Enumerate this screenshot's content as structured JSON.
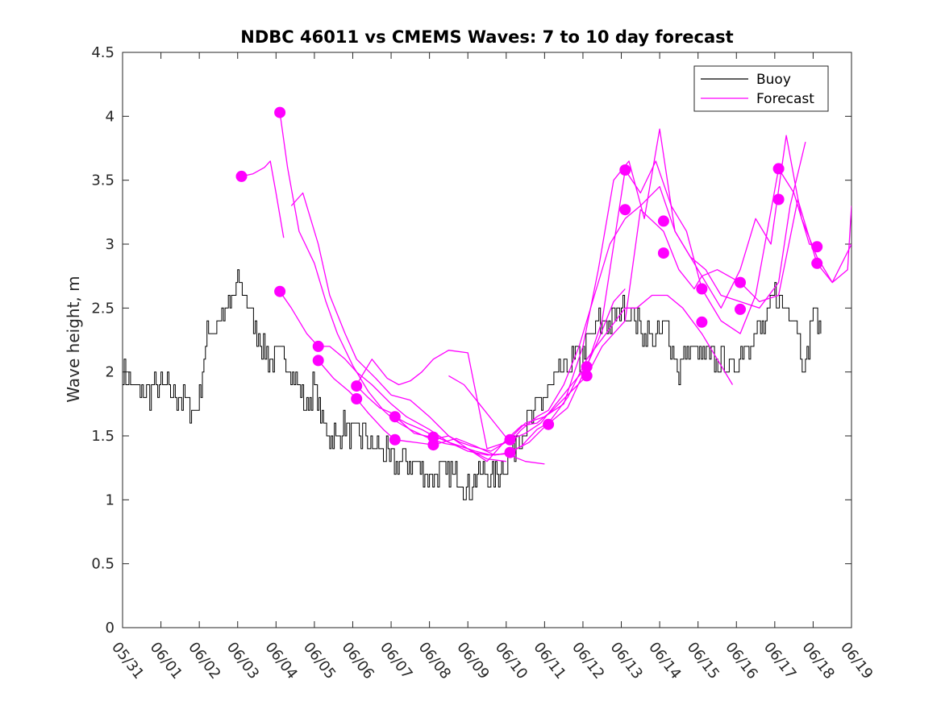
{
  "chart_data": {
    "type": "line",
    "title": "NDBC 46011 vs CMEMS Waves: 7 to 10 day forecast",
    "xlabel": "",
    "ylabel": "Wave height, m",
    "x_tick_labels": [
      "05/31",
      "06/01",
      "06/02",
      "06/03",
      "06/04",
      "06/05",
      "06/06",
      "06/07",
      "06/08",
      "06/09",
      "06/10",
      "06/11",
      "06/12",
      "06/13",
      "06/14",
      "06/15",
      "06/16",
      "06/17",
      "06/18",
      "06/19"
    ],
    "xlim": [
      "05/31",
      "06/19"
    ],
    "y_tick_labels": [
      "0",
      "0.5",
      "1",
      "1.5",
      "2",
      "2.5",
      "3",
      "3.5",
      "4",
      "4.5"
    ],
    "ylim": [
      0,
      4.5
    ],
    "legend": {
      "position": "top-right",
      "entries": [
        "Buoy",
        "Forecast"
      ]
    },
    "colors": {
      "buoy": "#000000",
      "forecast": "#ff00ff"
    },
    "x_unit": "days after 05/31 00:00",
    "buoy": {
      "name": "Buoy",
      "x": [
        0,
        0.5,
        1,
        1.5,
        1.8,
        2.0,
        2.2,
        2.5,
        2.8,
        3.0,
        3.2,
        3.5,
        3.8,
        4.0,
        4.3,
        4.6,
        4.8,
        5.0,
        5.2,
        5.4,
        5.6,
        5.8,
        6.0,
        6.3,
        6.6,
        6.8,
        7.0,
        7.3,
        7.6,
        8.0,
        8.3,
        8.6,
        8.8,
        9.0,
        9.2,
        9.4,
        9.6,
        9.8,
        10.0,
        10.3,
        10.5,
        10.8,
        11.0,
        11.2,
        11.5,
        11.8,
        12.0,
        12.2,
        12.5,
        12.8,
        13.0,
        13.3,
        13.6,
        13.9,
        14.2,
        14.5,
        14.8,
        15.0,
        15.3,
        15.6,
        15.9,
        16.2,
        16.5,
        16.8,
        17.0,
        17.2,
        17.5,
        17.8,
        18.0,
        18.2
      ],
      "values": [
        2.0,
        1.8,
        1.9,
        1.8,
        1.7,
        1.8,
        2.3,
        2.4,
        2.5,
        2.7,
        2.6,
        2.3,
        2.1,
        2.1,
        2.1,
        1.9,
        1.7,
        1.9,
        1.6,
        1.5,
        1.5,
        1.6,
        1.5,
        1.5,
        1.4,
        1.4,
        1.3,
        1.3,
        1.3,
        1.2,
        1.2,
        1.2,
        1.15,
        1.1,
        1.15,
        1.2,
        1.15,
        1.2,
        1.3,
        1.5,
        1.6,
        1.7,
        1.8,
        1.9,
        2.0,
        2.1,
        2.1,
        2.3,
        2.4,
        2.4,
        2.5,
        2.45,
        2.3,
        2.25,
        2.35,
        2.0,
        2.2,
        2.15,
        2.1,
        2.1,
        2.0,
        2.2,
        2.3,
        2.4,
        2.6,
        2.5,
        2.45,
        2.0,
        2.5,
        2.3
      ]
    },
    "forecasts": [
      {
        "name": "Forecast",
        "x": [
          3.1,
          3.4,
          3.7,
          3.85,
          4.0,
          4.2
        ],
        "values": [
          3.53,
          3.55,
          3.6,
          3.65,
          3.4,
          3.05
        ]
      },
      {
        "name": "Forecast",
        "x": [
          4.1,
          4.3,
          4.6,
          5.0,
          5.3,
          5.6,
          6.0,
          6.4,
          6.8,
          7.1,
          7.5,
          8.0,
          8.4,
          8.8,
          9.2,
          9.6,
          10.0,
          10.4,
          10.8,
          11.2,
          11.6,
          12.0,
          12.4,
          12.8,
          13.1
        ],
        "values": [
          4.03,
          3.6,
          3.1,
          2.85,
          2.55,
          2.3,
          2.05,
          1.85,
          1.7,
          1.62,
          1.55,
          1.48,
          1.44,
          1.42,
          1.38,
          1.35,
          1.36,
          1.42,
          1.55,
          1.62,
          1.72,
          1.98,
          2.25,
          2.55,
          2.65
        ]
      },
      {
        "name": "Forecast",
        "x": [
          4.1,
          4.4,
          4.8,
          5.1,
          5.4,
          5.8,
          6.1,
          6.5,
          7.0,
          7.4,
          8.0,
          8.5,
          9.0,
          9.5,
          10.0,
          10.5,
          11.0
        ],
        "values": [
          2.63,
          2.5,
          2.3,
          2.2,
          2.2,
          2.1,
          2.0,
          1.9,
          1.75,
          1.65,
          1.55,
          1.45,
          1.38,
          1.35,
          1.36,
          1.3,
          1.28
        ]
      },
      {
        "name": "Forecast",
        "x": [
          4.4,
          4.7,
          5.1,
          5.4,
          5.8,
          6.1,
          6.6,
          7.0,
          7.5,
          8.0,
          8.5,
          9.0,
          9.5,
          10.0
        ],
        "values": [
          3.3,
          3.4,
          3.0,
          2.6,
          2.3,
          2.1,
          1.95,
          1.82,
          1.78,
          1.65,
          1.5,
          1.4,
          1.32,
          1.3
        ]
      },
      {
        "name": "Forecast",
        "x": [
          5.1,
          5.5,
          5.9,
          6.1,
          6.4,
          6.8,
          7.1,
          7.6,
          8.1,
          8.7,
          9.2,
          9.7,
          10.1,
          10.6,
          11.1,
          11.6,
          12.1,
          12.6,
          13.1,
          13.4,
          13.8,
          14.2,
          14.6,
          15.1,
          15.5,
          15.9
        ],
        "values": [
          2.09,
          1.95,
          1.85,
          1.79,
          1.68,
          1.55,
          1.47,
          1.45,
          1.43,
          1.48,
          1.42,
          1.35,
          1.37,
          1.45,
          1.6,
          1.8,
          2.1,
          2.3,
          2.5,
          2.5,
          2.6,
          2.6,
          2.5,
          2.3,
          2.1,
          1.9
        ]
      },
      {
        "name": "Forecast",
        "x": [
          6.1,
          6.4,
          6.7,
          7.0,
          7.3,
          7.6,
          7.9,
          8.2,
          8.5,
          8.8,
          9.1,
          9.6,
          10.1,
          10.5,
          10.9,
          11.3,
          11.7,
          12.1,
          12.5,
          13.1,
          13.5,
          13.9,
          14.3,
          14.7,
          15.1,
          15.6,
          16.1,
          16.5,
          17.1,
          17.5,
          17.9,
          18.1
        ],
        "values": [
          1.89,
          1.8,
          1.72,
          1.68,
          1.6,
          1.52,
          1.5,
          1.48,
          1.5,
          1.45,
          1.42,
          1.38,
          1.47,
          1.52,
          1.6,
          1.75,
          1.9,
          2.04,
          2.4,
          3.58,
          3.4,
          3.65,
          3.3,
          3.1,
          2.65,
          2.4,
          2.3,
          2.6,
          3.59,
          3.4,
          3.0,
          2.98
        ]
      },
      {
        "name": "Forecast",
        "x": [
          7.1,
          7.4,
          7.8,
          8.1,
          8.5,
          9.0,
          9.5,
          10.0,
          10.4,
          10.8,
          11.2,
          11.7,
          12.1,
          12.5,
          13.1,
          13.5,
          14.1,
          14.5,
          14.9,
          15.1,
          15.5,
          16.1,
          16.6,
          17.1,
          17.6,
          18.1,
          18.5,
          18.9,
          19.0
        ],
        "values": [
          1.65,
          1.6,
          1.55,
          1.5,
          1.45,
          1.4,
          1.3,
          1.47,
          1.58,
          1.6,
          1.7,
          1.85,
          1.97,
          2.2,
          2.4,
          3.27,
          3.1,
          2.8,
          2.65,
          2.75,
          2.8,
          2.7,
          2.55,
          2.6,
          3.35,
          2.85,
          2.7,
          2.8,
          3.3
        ]
      },
      {
        "name": "Forecast",
        "x": [
          6.1,
          6.5,
          6.9,
          7.2,
          7.5,
          7.8,
          8.1,
          8.5,
          9.0,
          9.5,
          10.0,
          10.5,
          11.0,
          11.5,
          12.0,
          12.4,
          12.8,
          13.2,
          13.6,
          14.0,
          14.4,
          14.8,
          15.2,
          15.6,
          16.1,
          16.5,
          16.9,
          17.3,
          17.7,
          18.1,
          18.5,
          19.0
        ],
        "values": [
          1.9,
          2.1,
          1.95,
          1.9,
          1.93,
          2.0,
          2.1,
          2.17,
          2.15,
          1.4,
          1.45,
          1.6,
          1.65,
          1.75,
          2.2,
          2.8,
          3.5,
          3.65,
          3.2,
          3.9,
          3.1,
          2.9,
          2.7,
          2.5,
          2.8,
          3.2,
          3.0,
          3.85,
          3.2,
          2.9,
          2.7,
          3.0
        ]
      },
      {
        "name": "Forecast",
        "x": [
          8.5,
          8.9,
          9.3,
          9.7,
          10.1,
          10.4,
          10.8,
          11.1,
          11.5,
          11.9,
          12.3,
          12.7,
          13.1,
          13.5,
          14.0,
          14.4,
          14.8,
          15.2,
          15.6,
          16.1,
          16.6,
          17.1,
          17.4,
          17.8
        ],
        "values": [
          1.97,
          1.9,
          1.75,
          1.6,
          1.45,
          1.55,
          1.65,
          1.7,
          1.9,
          2.2,
          2.6,
          3.0,
          3.2,
          3.3,
          3.45,
          3.1,
          2.9,
          2.8,
          2.6,
          2.55,
          2.5,
          2.7,
          3.3,
          3.8
        ]
      }
    ],
    "forecast_markers": {
      "x": [
        3.1,
        4.1,
        4.1,
        5.1,
        5.1,
        6.1,
        6.1,
        7.1,
        7.1,
        8.1,
        8.1,
        10.1,
        10.1,
        11.1,
        12.1,
        12.1,
        13.1,
        13.1,
        14.1,
        14.1,
        15.1,
        15.1,
        16.1,
        16.1,
        17.1,
        17.1,
        18.1,
        18.1
      ],
      "values": [
        3.53,
        4.03,
        2.63,
        2.2,
        2.09,
        1.89,
        1.79,
        1.65,
        1.47,
        1.49,
        1.43,
        1.47,
        1.37,
        1.59,
        2.04,
        1.97,
        3.58,
        3.27,
        3.18,
        2.93,
        2.65,
        2.39,
        2.7,
        2.49,
        3.59,
        3.35,
        2.98,
        2.85
      ]
    }
  }
}
